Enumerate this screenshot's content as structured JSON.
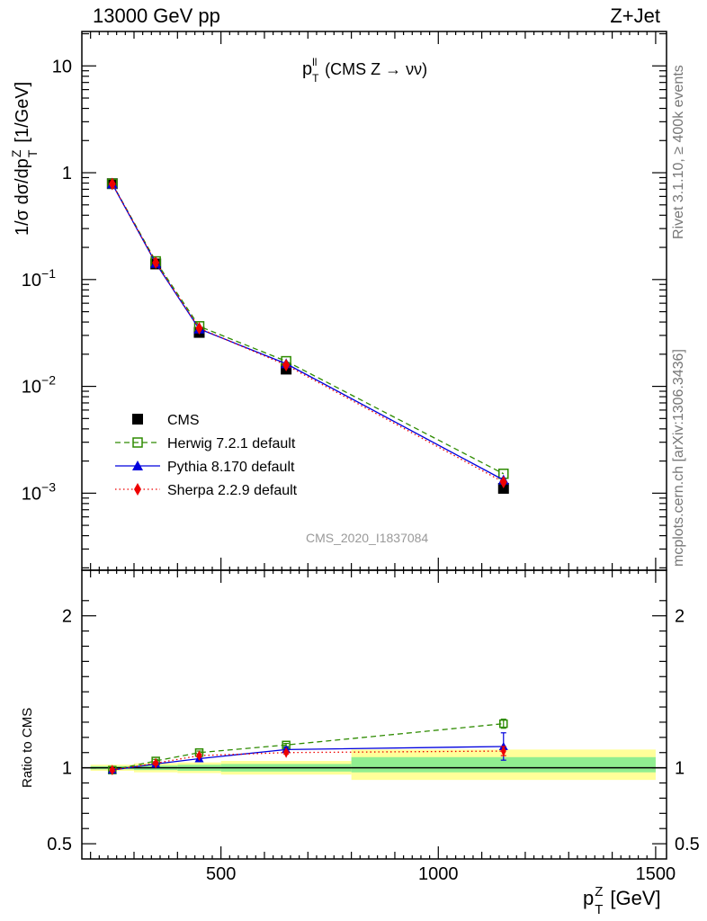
{
  "header": {
    "left": "13000 GeV pp",
    "right": "Z+Jet"
  },
  "side_text": {
    "upper": "Rivet 3.1.10, ≥ 400k events",
    "lower": "mcplots.cern.ch [arXiv:1306.3436]"
  },
  "analysis_id": "CMS_2020_I1837084",
  "chart_data": [
    {
      "type": "scatter",
      "panel": "main",
      "title": "p_T^ll (CMS Z → νν)",
      "title_text": {
        "base": "p",
        "sup": "ll",
        "sub": "T",
        "rest": " (CMS Z → νν)"
      },
      "xlabel": "p_T^Z [GeV]",
      "xlabel_text": {
        "base": "p",
        "sup": "Z",
        "sub": "T",
        "rest": " [GeV]"
      },
      "ylabel": "1/σ dσ/dp_T^Z [1/GeV]",
      "ylabel_text": {
        "base": "1/σ dσ/dp",
        "sup": "Z",
        "sub": "T",
        "rest": " [1/GeV]"
      },
      "xlim": [
        180,
        1525
      ],
      "ylim": [
        0.00019,
        21
      ],
      "yscale": "log",
      "x_ticks": [
        500,
        1000,
        1500
      ],
      "x_tick_labels": [
        "500",
        "1000",
        "1500"
      ],
      "y_ticks": [
        10,
        1,
        0.1,
        0.01,
        0.001
      ],
      "y_tick_labels": [
        {
          "base": "10",
          "exp": ""
        },
        {
          "base": "1",
          "exp": ""
        },
        {
          "base": "10",
          "exp": "−1"
        },
        {
          "base": "10",
          "exp": "−2"
        },
        {
          "base": "10",
          "exp": "−3"
        }
      ],
      "grid": false,
      "legend_position": "lower-left",
      "x": [
        250,
        350,
        450,
        650,
        1150
      ],
      "series": [
        {
          "name": "CMS",
          "color": "#000000",
          "marker": "square-filled",
          "values": [
            0.79,
            0.14,
            0.032,
            0.0145,
            0.00111
          ]
        },
        {
          "name": "Herwig 7.2.1 default",
          "color": "#2e8b00",
          "marker": "square-open",
          "line": "dashed",
          "values": [
            0.79,
            0.148,
            0.0365,
            0.0172,
            0.00152
          ]
        },
        {
          "name": "Pythia 8.170 default",
          "color": "#0000dd",
          "marker": "triangle",
          "line": "solid",
          "values": [
            0.785,
            0.142,
            0.0345,
            0.0163,
            0.00133
          ]
        },
        {
          "name": "Sherpa 2.2.9 default",
          "color": "#ee0000",
          "marker": "diamond",
          "line": "dotted",
          "values": [
            0.785,
            0.144,
            0.035,
            0.0158,
            0.00127
          ]
        }
      ]
    },
    {
      "type": "line",
      "panel": "ratio",
      "ylabel": "Ratio to CMS",
      "xlim": [
        180,
        1525
      ],
      "ylim": [
        0.4,
        2.3
      ],
      "y_ticks": [
        0.5,
        1,
        2
      ],
      "y_tick_labels": [
        "0.5",
        "1",
        "2"
      ],
      "reference": 1.0,
      "uncertainty_bands": [
        {
          "x_range": [
            200,
            300
          ],
          "inner": [
            0.99,
            1.01
          ],
          "outer": [
            0.98,
            1.02
          ]
        },
        {
          "x_range": [
            300,
            400
          ],
          "inner": [
            0.985,
            1.015
          ],
          "outer": [
            0.97,
            1.03
          ]
        },
        {
          "x_range": [
            400,
            500
          ],
          "inner": [
            0.98,
            1.02
          ],
          "outer": [
            0.965,
            1.035
          ]
        },
        {
          "x_range": [
            500,
            800
          ],
          "inner": [
            0.975,
            1.025
          ],
          "outer": [
            0.955,
            1.045
          ]
        },
        {
          "x_range": [
            800,
            1500
          ],
          "inner": [
            0.97,
            1.07
          ],
          "outer": [
            0.92,
            1.12
          ]
        }
      ],
      "x": [
        250,
        350,
        450,
        650,
        1150
      ],
      "series": [
        {
          "name": "Herwig 7.2.1 default",
          "color": "#2e8b00",
          "marker": "square-open",
          "line": "dashed",
          "values": [
            0.985,
            1.045,
            1.1,
            1.15,
            1.29
          ],
          "errors": [
            0.01,
            0.01,
            0.01,
            0.01,
            0.03
          ]
        },
        {
          "name": "Pythia 8.170 default",
          "color": "#0000dd",
          "marker": "triangle",
          "line": "solid",
          "values": [
            0.985,
            1.025,
            1.06,
            1.12,
            1.14
          ],
          "errors": [
            0.01,
            0.01,
            0.01,
            0.015,
            0.09
          ]
        },
        {
          "name": "Sherpa 2.2.9 default",
          "color": "#ee0000",
          "marker": "diamond",
          "line": "dotted",
          "values": [
            0.985,
            1.03,
            1.08,
            1.1,
            1.11
          ],
          "errors": [
            0.01,
            0.01,
            0.01,
            0.01,
            0.03
          ]
        }
      ]
    }
  ]
}
